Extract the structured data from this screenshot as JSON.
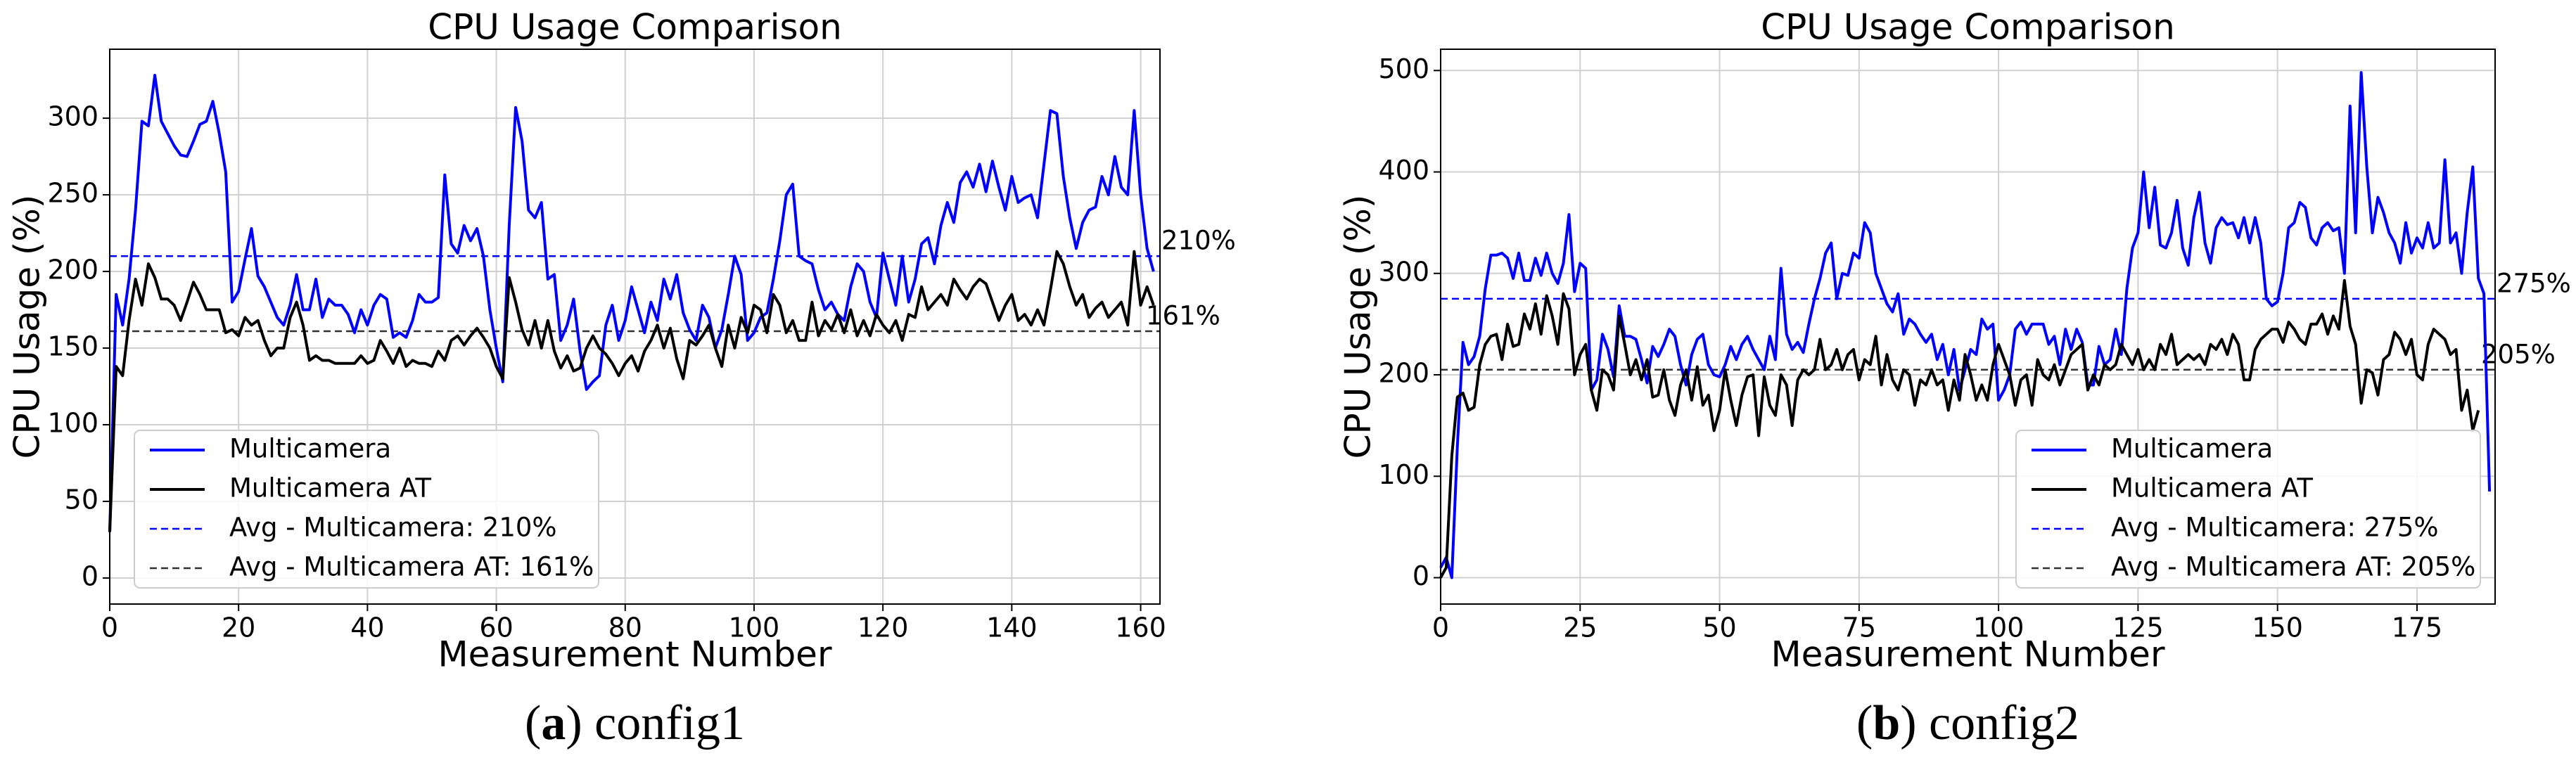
{
  "chart_data": [
    {
      "type": "line",
      "title": "CPU Usage Comparison",
      "x_label": "Measurement Number",
      "y_label": "CPU Usage (%)",
      "caption": [
        "(",
        "a",
        ") config1"
      ],
      "x": [
        0,
        1,
        2,
        3,
        4,
        5,
        6,
        7,
        8,
        9,
        10,
        11,
        12,
        13,
        14,
        15,
        16,
        17,
        18,
        19,
        20,
        21,
        22,
        23,
        24,
        25,
        26,
        27,
        28,
        29,
        30,
        31,
        32,
        33,
        34,
        35,
        36,
        37,
        38,
        39,
        40,
        41,
        42,
        43,
        44,
        45,
        46,
        47,
        48,
        49,
        50,
        51,
        52,
        53,
        54,
        55,
        56,
        57,
        58,
        59,
        60,
        61,
        62,
        63,
        64,
        65,
        66,
        67,
        68,
        69,
        70,
        71,
        72,
        73,
        74,
        75,
        76,
        77,
        78,
        79,
        80,
        81,
        82,
        83,
        84,
        85,
        86,
        87,
        88,
        89,
        90,
        91,
        92,
        93,
        94,
        95,
        96,
        97,
        98,
        99,
        100,
        101,
        102,
        103,
        104,
        105,
        106,
        107,
        108,
        109,
        110,
        111,
        112,
        113,
        114,
        115,
        116,
        117,
        118,
        119,
        120,
        121,
        122,
        123,
        124,
        125,
        126,
        127,
        128,
        129,
        130,
        131,
        132,
        133,
        134,
        135,
        136,
        137,
        138,
        139,
        140,
        141,
        142,
        143,
        144,
        145,
        146,
        147,
        148,
        149,
        150,
        151,
        152,
        153,
        154,
        155,
        156,
        157,
        158,
        159,
        160,
        161,
        162
      ],
      "series": [
        {
          "name": "Multicamera",
          "color": "#0000ff",
          "values": [
            30,
            185,
            165,
            195,
            240,
            298,
            295,
            328,
            298,
            290,
            282,
            276,
            275,
            285,
            296,
            298,
            311,
            290,
            265,
            180,
            187,
            208,
            228,
            197,
            190,
            180,
            170,
            165,
            178,
            198,
            175,
            175,
            195,
            170,
            182,
            178,
            178,
            172,
            160,
            175,
            165,
            178,
            185,
            182,
            157,
            160,
            157,
            168,
            185,
            180,
            180,
            183,
            263,
            218,
            212,
            230,
            220,
            228,
            210,
            175,
            150,
            128,
            230,
            307,
            285,
            240,
            235,
            245,
            195,
            198,
            155,
            165,
            182,
            148,
            123,
            128,
            132,
            165,
            178,
            155,
            168,
            190,
            175,
            160,
            180,
            168,
            195,
            182,
            198,
            173,
            162,
            155,
            178,
            170,
            150,
            162,
            185,
            210,
            198,
            155,
            160,
            170,
            173,
            195,
            220,
            250,
            257,
            210,
            207,
            205,
            188,
            175,
            180,
            172,
            168,
            190,
            205,
            200,
            180,
            170,
            212,
            195,
            178,
            210,
            180,
            195,
            218,
            222,
            205,
            230,
            245,
            232,
            258,
            265,
            255,
            270,
            252,
            272,
            255,
            240,
            262,
            245,
            248,
            250,
            235,
            270,
            305,
            303,
            262,
            235,
            215,
            232,
            240,
            242,
            262,
            250,
            275,
            255,
            250,
            305,
            250,
            215,
            200
          ]
        },
        {
          "name": "Multicamera AT",
          "color": "#000000",
          "values": [
            30,
            138,
            132,
            168,
            195,
            178,
            205,
            196,
            182,
            182,
            178,
            168,
            180,
            193,
            185,
            175,
            175,
            175,
            160,
            162,
            158,
            170,
            165,
            168,
            155,
            145,
            150,
            150,
            170,
            180,
            165,
            142,
            145,
            142,
            142,
            140,
            140,
            140,
            140,
            145,
            140,
            142,
            155,
            148,
            140,
            150,
            138,
            142,
            140,
            140,
            138,
            148,
            142,
            155,
            158,
            152,
            158,
            163,
            157,
            150,
            138,
            130,
            196,
            180,
            162,
            152,
            168,
            150,
            168,
            148,
            137,
            145,
            135,
            137,
            150,
            158,
            150,
            146,
            140,
            132,
            140,
            145,
            135,
            148,
            155,
            165,
            150,
            163,
            143,
            130,
            155,
            152,
            158,
            165,
            150,
            138,
            165,
            150,
            170,
            160,
            178,
            175,
            160,
            185,
            178,
            160,
            168,
            155,
            155,
            180,
            158,
            168,
            162,
            172,
            160,
            175,
            158,
            168,
            158,
            172,
            165,
            160,
            168,
            155,
            172,
            170,
            190,
            175,
            180,
            185,
            178,
            195,
            188,
            182,
            190,
            195,
            192,
            180,
            168,
            178,
            185,
            168,
            172,
            165,
            175,
            165,
            188,
            213,
            205,
            190,
            178,
            185,
            170,
            176,
            180,
            170,
            175,
            180,
            165,
            213,
            178,
            190,
            178
          ]
        }
      ],
      "hlines": [
        {
          "name": "Avg - Multicamera: 210%",
          "value": 210,
          "label": "210%",
          "color": "#0000ff"
        },
        {
          "name": "Avg - Multicamera AT: 161%",
          "value": 161,
          "label": "161%",
          "color": "#333333"
        }
      ],
      "xlim": [
        0,
        163
      ],
      "ylim": [
        -17,
        345
      ],
      "xticks": [
        0,
        20,
        40,
        60,
        80,
        100,
        120,
        140,
        160
      ],
      "yticks": [
        0,
        50,
        100,
        150,
        200,
        250,
        300
      ],
      "grid": true,
      "legend": "lower left"
    },
    {
      "type": "line",
      "title": "CPU Usage Comparison",
      "x_label": "Measurement Number",
      "y_label": "CPU Usage (%)",
      "caption": [
        "(",
        "b",
        ") config2"
      ],
      "x": [
        0,
        1,
        2,
        3,
        4,
        5,
        6,
        7,
        8,
        9,
        10,
        11,
        12,
        13,
        14,
        15,
        16,
        17,
        18,
        19,
        20,
        21,
        22,
        23,
        24,
        25,
        26,
        27,
        28,
        29,
        30,
        31,
        32,
        33,
        34,
        35,
        36,
        37,
        38,
        39,
        40,
        41,
        42,
        43,
        44,
        45,
        46,
        47,
        48,
        49,
        50,
        51,
        52,
        53,
        54,
        55,
        56,
        57,
        58,
        59,
        60,
        61,
        62,
        63,
        64,
        65,
        66,
        67,
        68,
        69,
        70,
        71,
        72,
        73,
        74,
        75,
        76,
        77,
        78,
        79,
        80,
        81,
        82,
        83,
        84,
        85,
        86,
        87,
        88,
        89,
        90,
        91,
        92,
        93,
        94,
        95,
        96,
        97,
        98,
        99,
        100,
        101,
        102,
        103,
        104,
        105,
        106,
        107,
        108,
        109,
        110,
        111,
        112,
        113,
        114,
        115,
        116,
        117,
        118,
        119,
        120,
        121,
        122,
        123,
        124,
        125,
        126,
        127,
        128,
        129,
        130,
        131,
        132,
        133,
        134,
        135,
        136,
        137,
        138,
        139,
        140,
        141,
        142,
        143,
        144,
        145,
        146,
        147,
        148,
        149,
        150,
        151,
        152,
        153,
        154,
        155,
        156,
        157,
        158,
        159,
        160,
        161,
        162,
        163,
        164,
        165,
        166,
        167,
        168,
        169,
        170,
        171,
        172,
        173,
        174,
        175,
        176,
        177,
        178,
        179,
        180,
        181,
        182,
        183,
        184,
        185,
        186,
        187,
        188
      ],
      "series": [
        {
          "name": "Multicamera",
          "color": "#0000ff",
          "values": [
            10,
            20,
            0,
            130,
            232,
            210,
            218,
            238,
            285,
            318,
            318,
            320,
            315,
            295,
            320,
            293,
            293,
            315,
            298,
            320,
            300,
            290,
            310,
            358,
            282,
            310,
            305,
            185,
            195,
            240,
            225,
            198,
            268,
            238,
            238,
            235,
            215,
            192,
            228,
            218,
            230,
            245,
            238,
            210,
            190,
            220,
            235,
            240,
            210,
            200,
            198,
            210,
            228,
            215,
            230,
            238,
            225,
            215,
            205,
            238,
            215,
            305,
            240,
            225,
            232,
            222,
            250,
            275,
            295,
            320,
            330,
            275,
            300,
            298,
            320,
            315,
            350,
            340,
            300,
            285,
            270,
            262,
            280,
            240,
            255,
            250,
            240,
            232,
            240,
            215,
            230,
            200,
            225,
            185,
            205,
            225,
            220,
            255,
            245,
            250,
            175,
            185,
            200,
            245,
            252,
            240,
            250,
            250,
            250,
            230,
            238,
            210,
            245,
            225,
            245,
            232,
            190,
            190,
            228,
            210,
            215,
            245,
            220,
            285,
            325,
            340,
            400,
            345,
            385,
            328,
            325,
            340,
            372,
            325,
            308,
            355,
            380,
            330,
            310,
            345,
            355,
            348,
            350,
            335,
            355,
            330,
            355,
            330,
            275,
            268,
            272,
            300,
            345,
            350,
            370,
            365,
            335,
            328,
            345,
            350,
            342,
            345,
            300,
            465,
            340,
            498,
            405,
            340,
            375,
            360,
            340,
            330,
            310,
            350,
            320,
            335,
            325,
            350,
            325,
            330,
            412,
            330,
            340,
            300,
            360,
            405,
            295,
            280,
            85
          ]
        },
        {
          "name": "Multicamera AT",
          "color": "#000000",
          "values": [
            0,
            10,
            120,
            178,
            182,
            165,
            168,
            210,
            230,
            238,
            240,
            215,
            250,
            228,
            230,
            260,
            245,
            270,
            240,
            278,
            258,
            230,
            280,
            265,
            200,
            220,
            230,
            185,
            165,
            205,
            200,
            185,
            258,
            230,
            200,
            215,
            195,
            215,
            178,
            180,
            205,
            175,
            160,
            190,
            205,
            175,
            208,
            170,
            180,
            145,
            165,
            205,
            175,
            150,
            180,
            198,
            200,
            140,
            198,
            170,
            160,
            200,
            190,
            150,
            195,
            205,
            200,
            205,
            235,
            205,
            210,
            225,
            205,
            220,
            225,
            195,
            215,
            210,
            238,
            190,
            220,
            195,
            185,
            205,
            200,
            170,
            195,
            190,
            205,
            190,
            195,
            165,
            195,
            175,
            220,
            200,
            175,
            190,
            175,
            210,
            230,
            215,
            200,
            170,
            195,
            200,
            170,
            215,
            200,
            195,
            210,
            190,
            205,
            220,
            225,
            230,
            185,
            200,
            190,
            210,
            205,
            210,
            230,
            220,
            210,
            225,
            205,
            215,
            205,
            230,
            220,
            240,
            210,
            215,
            220,
            215,
            220,
            210,
            230,
            225,
            235,
            220,
            240,
            230,
            195,
            195,
            225,
            235,
            240,
            245,
            245,
            232,
            252,
            245,
            235,
            230,
            250,
            250,
            260,
            240,
            258,
            245,
            293,
            248,
            230,
            172,
            205,
            202,
            180,
            215,
            220,
            242,
            235,
            220,
            235,
            200,
            195,
            230,
            245,
            240,
            235,
            220,
            225,
            165,
            185,
            145,
            165,
            null,
            null
          ]
        }
      ],
      "hlines": [
        {
          "name": "Avg - Multicamera: 275%",
          "value": 275,
          "label": "275%",
          "color": "#0000ff"
        },
        {
          "name": "Avg - Multicamera AT: 205%",
          "value": 205,
          "label": "205%",
          "color": "#333333"
        }
      ],
      "xlim": [
        0,
        189
      ],
      "ylim": [
        -26,
        521
      ],
      "xticks": [
        0,
        25,
        50,
        75,
        100,
        125,
        150,
        175
      ],
      "yticks": [
        0,
        100,
        200,
        300,
        400,
        500
      ],
      "grid": true,
      "legend": "lower right"
    }
  ]
}
